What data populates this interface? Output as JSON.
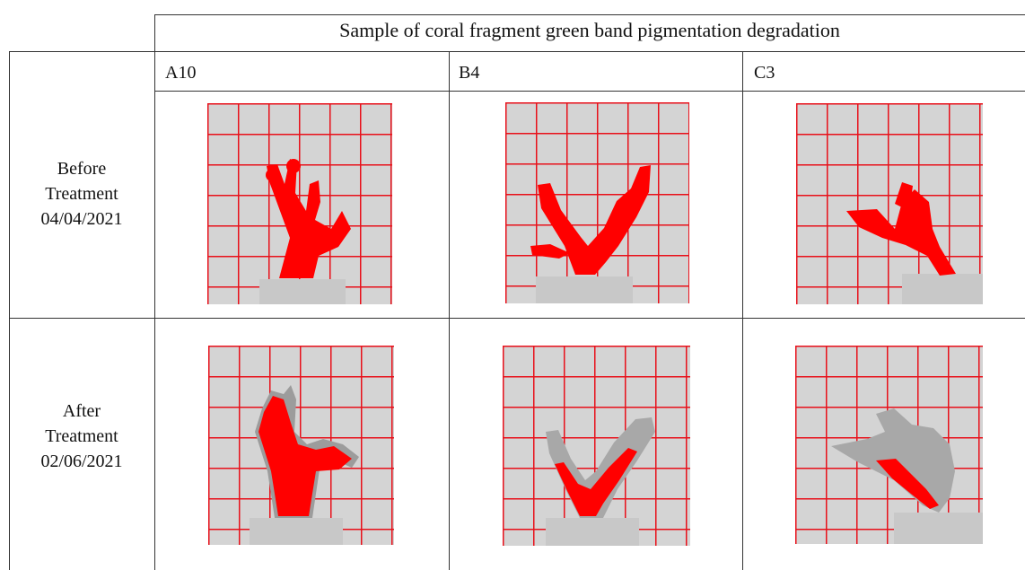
{
  "table": {
    "title": "Sample of coral fragment green band pigmentation degradation",
    "columns": [
      "A10",
      "B4",
      "C3"
    ],
    "rows": [
      {
        "label_lines": [
          "Before",
          "Treatment",
          "04/04/2021"
        ]
      },
      {
        "label_lines": [
          "After",
          "Treatment",
          "02/06/2021"
        ]
      }
    ]
  },
  "colors": {
    "grid_red": "#e8101a",
    "coral_red": "#ff0000",
    "rule": "#333333"
  }
}
